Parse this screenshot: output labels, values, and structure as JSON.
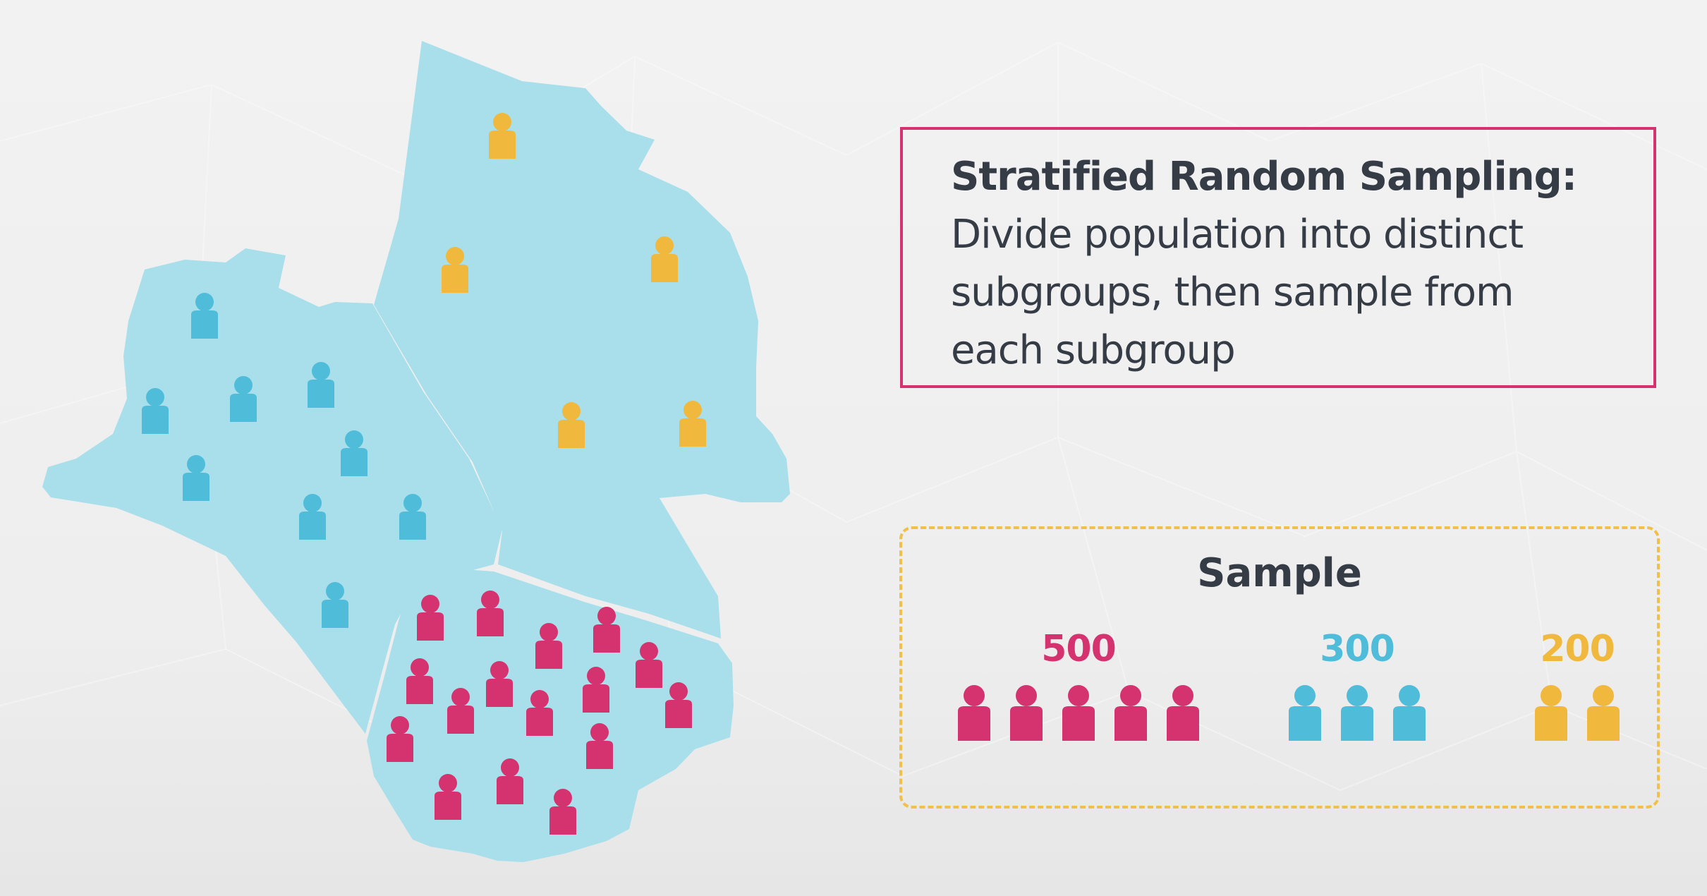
{
  "definition": {
    "title": "Stratified Random Sampling:",
    "lines": [
      "Divide population into distinct",
      "subgroups, then sample from",
      "each subgroup"
    ]
  },
  "sample": {
    "title": "Sample",
    "groups": [
      {
        "count": "500",
        "color": "#d4336f",
        "icons": 5
      },
      {
        "count": "300",
        "color": "#4fbcd9",
        "icons": 3
      },
      {
        "count": "200",
        "color": "#f0b93e",
        "icons": 2
      }
    ]
  },
  "colors": {
    "region_fill": "#a9dfeb",
    "border_definition": "#d4336f",
    "border_sample": "#f0c04a",
    "text_dark": "#353c46"
  },
  "icons": {
    "person": "person-icon",
    "region": "map-region"
  }
}
